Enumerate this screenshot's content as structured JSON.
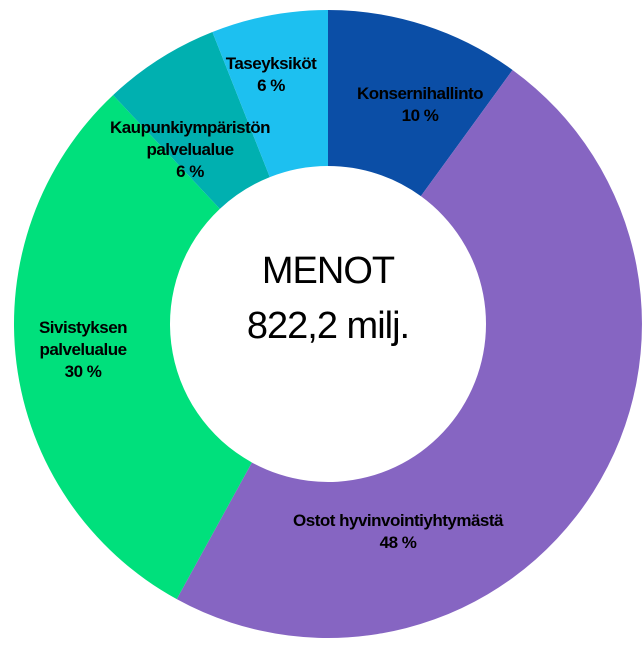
{
  "chart_data": {
    "type": "donut",
    "title": "MENOT",
    "subtitle": "822,2 milj.",
    "categories": [
      "Konsernihallinto",
      "Ostot hyvinvointiyhtymästä",
      "Sivistyksen palvelualue",
      "Kaupunkiympäristön palvelualue",
      "Taseyksiköt"
    ],
    "values": [
      10,
      48,
      30,
      6,
      6
    ],
    "value_labels": [
      "10 %",
      "48 %",
      "30 %",
      "6 %",
      "6 %"
    ],
    "colors": [
      "#0b4ea6",
      "#8665c2",
      "#00e07c",
      "#00b0b0",
      "#1dc0f0"
    ]
  }
}
